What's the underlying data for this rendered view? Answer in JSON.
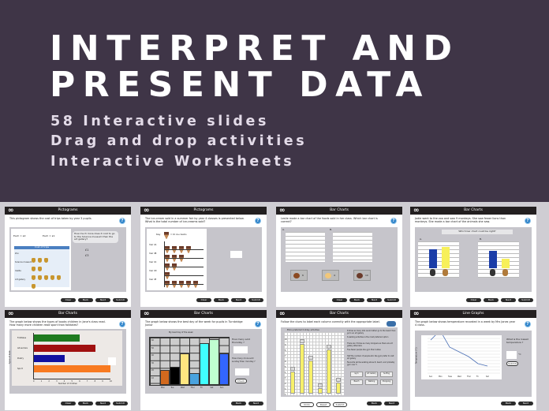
{
  "hero": {
    "title_line1": "INTERPRET AND",
    "title_line2": "PRESENT DATA",
    "features": [
      "58 Interactive slides",
      "Drag and drop activities",
      "Interactive Worksheets"
    ]
  },
  "colors": {
    "hero_bg": "#3f3547",
    "page_bg": "#cfcdd3",
    "slide_header": "#231f20",
    "help_blue": "#2f83c9"
  },
  "buttons": {
    "clear": "Clear",
    "back": "Back",
    "next": "Next",
    "submit": "Submit",
    "undo": "Undo",
    "reset": "Reset",
    "check": "Check"
  },
  "icons": {
    "logo": "infinity-logo",
    "help": "question-mark-circle"
  },
  "slides": [
    {
      "title": "Pictograms",
      "question": "This pictogram shows the cost of trips taken by year 3 pupils.",
      "key1": "Each = £2",
      "key2": "Each = £1",
      "table_title": "Cost of trips",
      "rows": [
        "Zoo",
        "Science museum",
        "Castle",
        "Art gallery"
      ],
      "ask": "How much more does it cost to go to the Science museum than the art gallery?",
      "options": [
        "£1",
        "£3"
      ]
    },
    {
      "title": "Pictograms",
      "question": "The ice-cream sold in a summer fair by year 4 classes is presented below. What is the total number of ice-creams sold?",
      "key": "Key",
      "key_value": "= 10 ice-creams",
      "rows": [
        "Year 4A",
        "Year 4B",
        "Year 4C",
        "Year 4D",
        "Year 4E"
      ]
    },
    {
      "title": "Bar Charts",
      "question": "Leslie made a bar chart of the foods sold in her class. Which bar chart is correct?",
      "chart_a": "A.",
      "chart_b": "B.",
      "counts": [
        "6",
        "4",
        "10"
      ]
    },
    {
      "title": "Bar Charts",
      "question": "Jodie went to the zoo and saw 9 monkeys. She saw fewer lions than monkeys. She made a bar chart of the animals she saw.",
      "prompt": "Which bar chart could be right?",
      "chart_a": "A.",
      "chart_b": "B."
    },
    {
      "title": "Bar Charts",
      "question": "The graph below shows the types of books children in Jane's class read. How many more children read sport than folktales?",
      "categories": [
        "Folktales",
        "Adventure",
        "Poetry",
        "Sport"
      ],
      "values": [
        6,
        8,
        4,
        10
      ],
      "xlabel": "Number of children",
      "ylabel": "Types of book",
      "ticks": [
        "0",
        "1",
        "2",
        "3",
        "4",
        "5",
        "6",
        "7",
        "8",
        "9",
        "10"
      ]
    },
    {
      "title": "Bar Charts",
      "question": "The graph below shows the best day of the week for pupils in Turnbridge Junior",
      "chart_title": "My best day of the week",
      "days": [
        "Mon",
        "Tue",
        "Wed",
        "Thur",
        "Fri",
        "Sat",
        "Sun"
      ],
      "values": [
        20,
        24,
        42,
        16,
        55,
        60,
        42
      ],
      "ticks": [
        "60",
        "50",
        "40",
        "30",
        "20",
        "10"
      ],
      "ask1": "How many sold thursday ?",
      "ask2": "How many more sold sunday than monday ?"
    },
    {
      "title": "Bar Charts",
      "question": "Follow the clues to label each column correctly with the appropriate label.",
      "chart_title": "Ella's preferred holiday activities",
      "ticks": [
        "10",
        "9",
        "8",
        "7",
        "6",
        "5",
        "4",
        "3",
        "2",
        "1",
        "0"
      ],
      "values": [
        4,
        9,
        6,
        1,
        8,
        2
      ],
      "clues": [
        "8 times as many kids would rather go to the beach than go to an art gallery",
        "6 walking activities is the most preferred option",
        "There are 3 times as many shoppers as there are art gallery attenders",
        "Five fewer people like gym than bullies",
        "Half the number of people who like gym prefer to visit art gallery",
        "Favourite will be walking above 8, beach, and probably gym over 5"
      ],
      "labels": [
        "Gym",
        "Art Gallery",
        "Surfing",
        "Beach",
        "Walking",
        "Shopping"
      ]
    },
    {
      "title": "Line Graphs",
      "question": "The graph below shows temperature recorded in a week by Mrs Jones year 4 class.",
      "ylabel": "Temperature (°C)",
      "days": [
        "Sun",
        "Mon",
        "Tues",
        "Wed",
        "Thur",
        "Fri",
        "Sat"
      ],
      "values": [
        14,
        18,
        11,
        9,
        7,
        4,
        3
      ],
      "ask": "What is the lowest temperature ?",
      "unit": "°C"
    }
  ]
}
